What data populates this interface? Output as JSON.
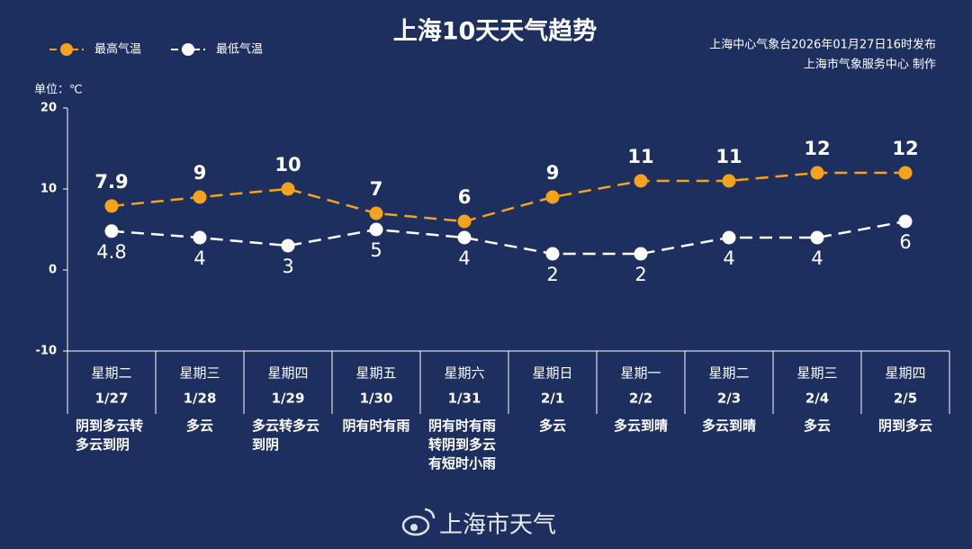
{
  "chart_data": {
    "type": "line",
    "title": "上海10天天气趋势",
    "source": "上海中心气象台2026年01月27日16时发布",
    "producer": "上海市气象服务中心 制作",
    "y_label": "单位：℃",
    "watermark": "上海市天气",
    "categories": [
      "1/27",
      "1/28",
      "1/29",
      "1/30",
      "1/31",
      "2/1",
      "2/2",
      "2/3",
      "2/4",
      "2/5"
    ],
    "weekdays": [
      "星期二",
      "星期三",
      "星期四",
      "星期五",
      "星期六",
      "星期日",
      "星期一",
      "星期二",
      "星期三",
      "星期四"
    ],
    "weekday_colors": [
      "#ffffff",
      "#ffffff",
      "#ffffff",
      "#ffffff",
      "#f5a31a",
      "#f5a31a",
      "#ffffff",
      "#ffffff",
      "#ffffff",
      "#ffffff"
    ],
    "weather": [
      "阴到多云转多云到阴",
      "多云",
      "多云转多云到阴",
      "阴有时有雨",
      "阴有时有雨转阴到多云有短时小雨",
      "多云",
      "多云到晴",
      "多云到晴",
      "多云",
      "阴到多云"
    ],
    "series": [
      {
        "name": "最高气温",
        "color": "#f5a31a",
        "values": [
          7.9,
          9,
          10,
          7,
          6,
          9,
          11,
          11,
          12,
          12
        ]
      },
      {
        "name": "最低气温",
        "color": "#ffffff",
        "values": [
          4.8,
          4,
          3,
          5,
          4,
          2,
          2,
          4,
          4,
          6
        ]
      }
    ],
    "ylim": [
      -10,
      20
    ],
    "yticks": [
      -10,
      0,
      10,
      20
    ],
    "grid": false
  }
}
